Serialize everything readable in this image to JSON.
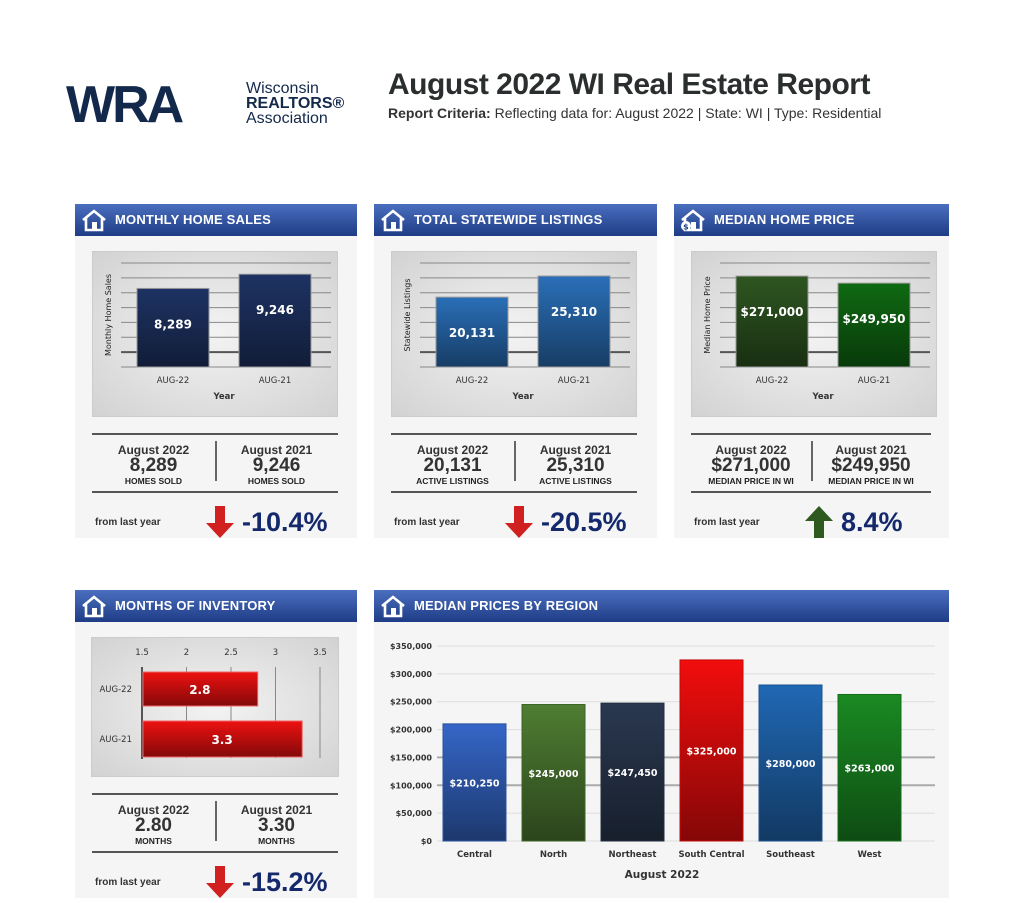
{
  "logo": {
    "mark": "WRA",
    "line1": "Wisconsin",
    "line2": "REALTORS®",
    "line3": "Association"
  },
  "header": {
    "title": "August 2022 WI Real Estate Report",
    "criteria_label": "Report Criteria:",
    "criteria_text": "Reflecting data for: August 2022 | State: WI | Type: Residential"
  },
  "panels": [
    {
      "title": "MONTHLY HOME SALES",
      "icon": "house-icon",
      "stats": {
        "left_label": "August 2022",
        "left_value": "8,289",
        "left_sub": "HOMES SOLD",
        "right_label": "August 2021",
        "right_value": "9,246",
        "right_sub": "HOMES SOLD"
      },
      "change": {
        "label": "from last year",
        "value": "-10.4%",
        "direction": "down",
        "color": "#d0201f"
      }
    },
    {
      "title": "TOTAL STATEWIDE LISTINGS",
      "icon": "house-sign-icon",
      "stats": {
        "left_label": "August 2022",
        "left_value": "20,131",
        "left_sub": "ACTIVE LISTINGS",
        "right_label": "August 2021",
        "right_value": "25,310",
        "right_sub": "ACTIVE LISTINGS"
      },
      "change": {
        "label": "from last year",
        "value": "-20.5%",
        "direction": "down",
        "color": "#d0201f"
      }
    },
    {
      "title": "MEDIAN HOME PRICE",
      "icon": "house-dollar-icon",
      "stats": {
        "left_label": "August 2022",
        "left_value": "$271,000",
        "left_sub": "MEDIAN PRICE IN WI",
        "right_label": "August 2021",
        "right_value": "$249,950",
        "right_sub": "MEDIAN PRICE IN WI"
      },
      "change": {
        "label": "from last year",
        "value": "8.4%",
        "direction": "up",
        "color": "#2f5a1f"
      }
    },
    {
      "title": "MONTHS OF INVENTORY",
      "icon": "houses-icon",
      "stats": {
        "left_label": "August 2022",
        "left_value": "2.80",
        "left_sub": "MONTHS",
        "right_label": "August 2021",
        "right_value": "3.30",
        "right_sub": "MONTHS"
      },
      "change": {
        "label": "from last year",
        "value": "-15.2%",
        "direction": "down",
        "color": "#d0201f"
      }
    },
    {
      "title": "MEDIAN PRICES BY REGION",
      "icon": "house-icon"
    }
  ],
  "chart_data": [
    {
      "type": "bar",
      "title": "",
      "xlabel": "Year",
      "ylabel": "Monthly Home Sales",
      "categories": [
        "AUG-22",
        "AUG-21"
      ],
      "values": [
        8289,
        9246
      ],
      "data_labels": [
        "8,289",
        "9,246"
      ],
      "ylim": [
        3000,
        10000
      ],
      "grid": true,
      "colors": [
        "#1e3364",
        "#1e3364"
      ]
    },
    {
      "type": "bar",
      "title": "",
      "xlabel": "Year",
      "ylabel": "Statewide Listings",
      "categories": [
        "AUG-22",
        "AUG-21"
      ],
      "values": [
        20131,
        25310
      ],
      "data_labels": [
        "20,131",
        "25,310"
      ],
      "ylim": [
        3000,
        28500
      ],
      "grid": true,
      "colors": [
        "#2a6fb8",
        "#2a6fb8"
      ]
    },
    {
      "type": "bar",
      "title": "",
      "xlabel": "Year",
      "ylabel": "Median Home Price",
      "categories": [
        "AUG-22",
        "AUG-21"
      ],
      "values": [
        271000,
        249950
      ],
      "data_labels": [
        "$271,000",
        "$249,950"
      ],
      "ylim": [
        0,
        310000
      ],
      "grid": true,
      "colors": [
        "#2e5620",
        "#0f6a12"
      ]
    },
    {
      "type": "bar",
      "orientation": "horizontal",
      "title": "",
      "categories": [
        "AUG-22",
        "AUG-21"
      ],
      "values": [
        2.8,
        3.3
      ],
      "data_labels": [
        "2.8",
        "3.3"
      ],
      "xlim": [
        1.5,
        3.5
      ],
      "ticks": [
        "1.5",
        "2",
        "2.5",
        "3",
        "3.5"
      ],
      "grid": true,
      "colors": [
        "#ee1111",
        "#ee1111"
      ]
    },
    {
      "type": "bar",
      "title": "",
      "xlabel": "August 2022",
      "ylabel": "",
      "categories": [
        "Central",
        "North",
        "Northeast",
        "South Central",
        "Southeast",
        "West"
      ],
      "values": [
        210250,
        245000,
        247450,
        325000,
        280000,
        263000
      ],
      "data_labels": [
        "$210,250",
        "$245,000",
        "$247,450",
        "$325,000",
        "$280,000",
        "$263,000"
      ],
      "ylim": [
        0,
        350000
      ],
      "yticks": [
        "$0",
        "$50,000",
        "$100,000",
        "$150,000",
        "$200,000",
        "$250,000",
        "$300,000",
        "$350,000"
      ],
      "grid": true,
      "colors": [
        "#3566c8",
        "#4f7d32",
        "#2a3850",
        "#f20d0d",
        "#2068b4",
        "#1a8a22"
      ]
    }
  ]
}
